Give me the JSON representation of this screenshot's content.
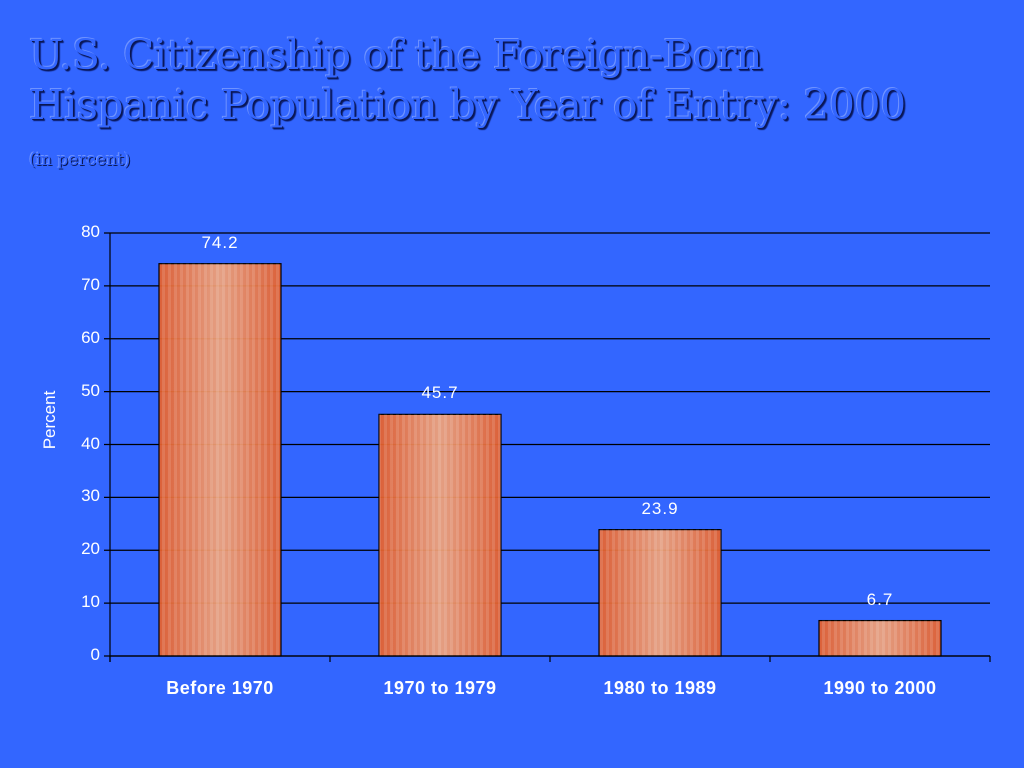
{
  "slide": {
    "title_line1": "U.S. Citizenship of the Foreign-Born",
    "title_line2": "Hispanic Population by Year of Entry:  2000",
    "subtitle": "(in percent)",
    "background_color": "#3366ff",
    "bar_color": "#e8663a"
  },
  "chart_data": {
    "type": "bar",
    "title": "U.S. Citizenship of the Foreign-Born Hispanic Population by Year of Entry: 2000",
    "subtitle": "(in percent)",
    "xlabel": "",
    "ylabel": "Percent",
    "categories": [
      "Before 1970",
      "1970 to 1979",
      "1980 to 1989",
      "1990 to 2000"
    ],
    "values": [
      74.2,
      45.7,
      23.9,
      6.7
    ],
    "value_labels": [
      "74.2",
      "45.7",
      "23.9",
      "6.7"
    ],
    "ylim": [
      0,
      80
    ],
    "yticks": [
      "0",
      "10",
      "20",
      "30",
      "40",
      "50",
      "60",
      "70",
      "80"
    ],
    "grid": true,
    "legend": "none"
  }
}
